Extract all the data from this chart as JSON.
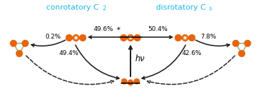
{
  "title_left": "conrotatory C",
  "title_left_sub": "2",
  "title_right": "disrotatory C",
  "title_right_sub": "s",
  "title_color": "#1ab8e8",
  "percent_top_left": "49.6%",
  "percent_top_right": "50.4%",
  "percent_side_left": "0.2%",
  "percent_side_right": "7.8%",
  "percent_mid_left": "49.4%",
  "percent_mid_right": "42.6%",
  "hv_label": "hν",
  "bg_color": "#ffffff",
  "arrow_color": "#222222",
  "molecule_orange": "#e8640a",
  "molecule_gray": "#a8c0a0",
  "star_label": "*",
  "font_size_pct": 6.5,
  "font_size_title": 8.0
}
